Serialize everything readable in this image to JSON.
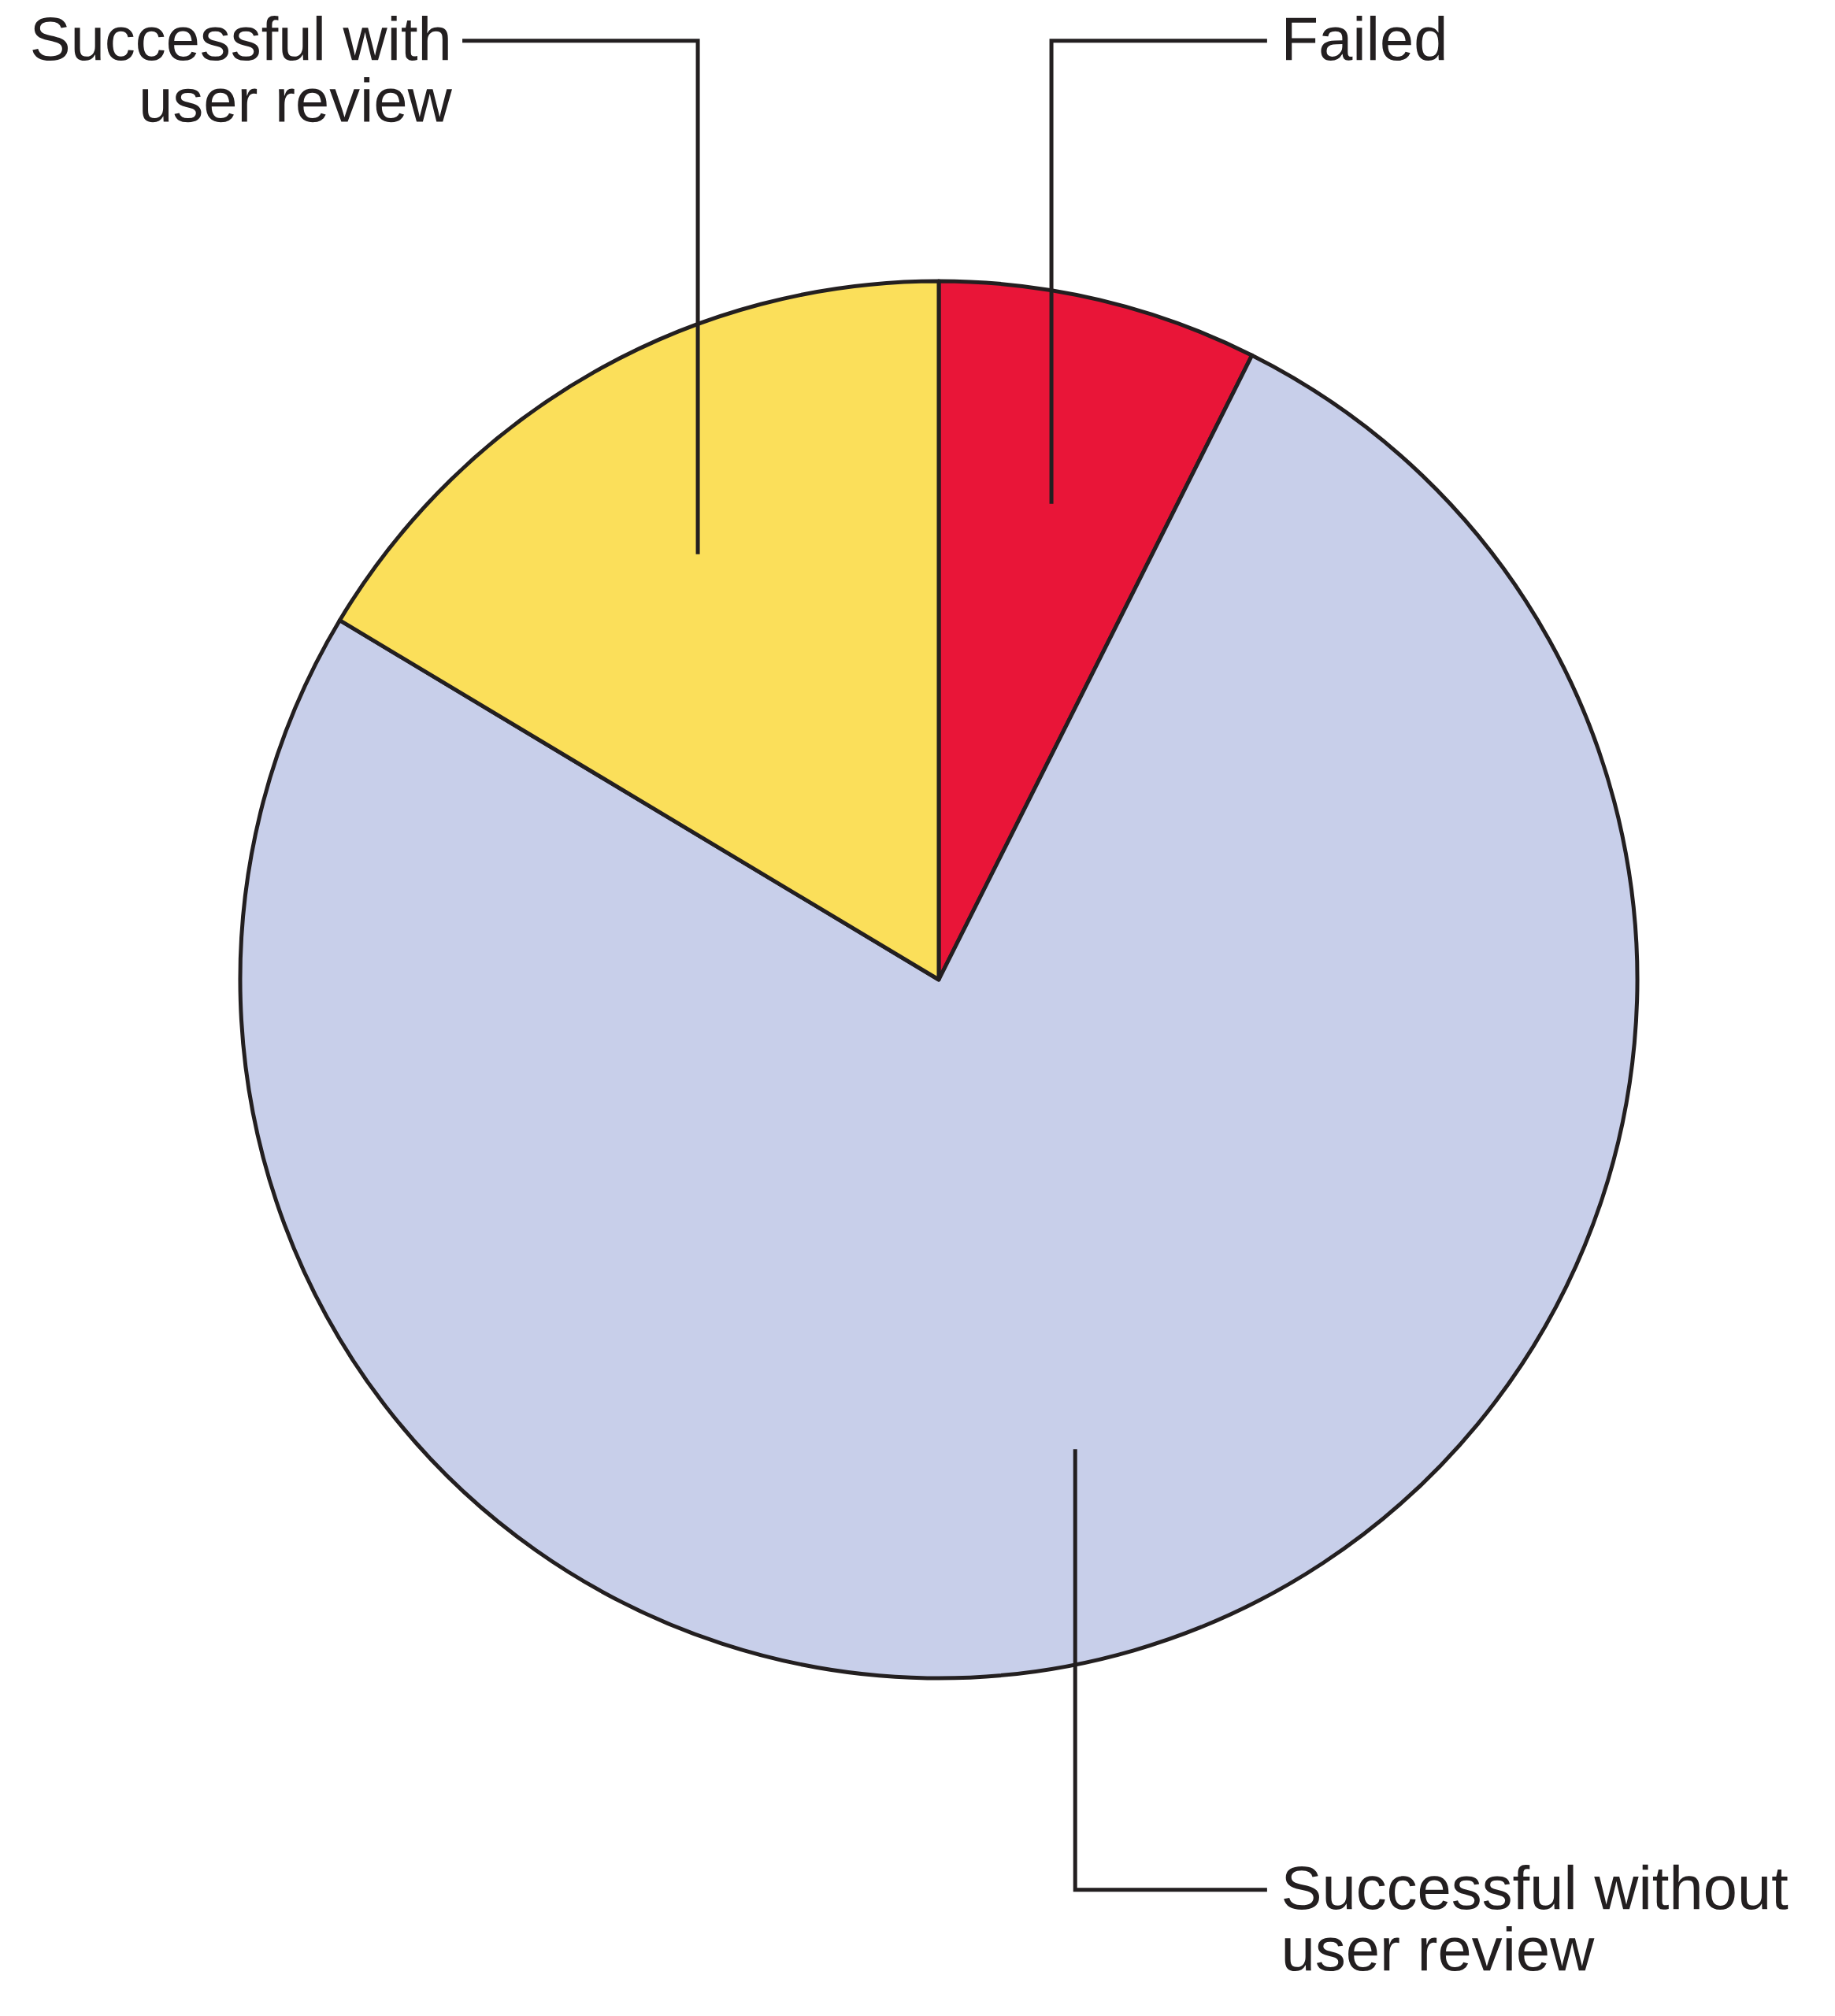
{
  "chart_data": {
    "type": "pie",
    "categories": [
      "Failed",
      "Successful without\nuser review",
      "Successful with\nuser review"
    ],
    "values": [
      7.4,
      76.2,
      16.4
    ],
    "colors": [
      "#e91538",
      "#c8cfea",
      "#fbdf5a"
    ]
  }
}
